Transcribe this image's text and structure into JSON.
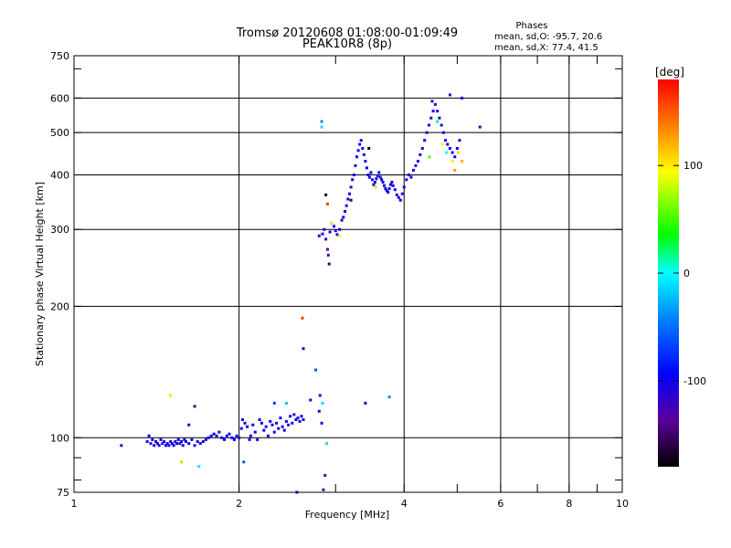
{
  "chart_data": {
    "type": "scatter",
    "title": "Tromsø 20120608 01:08:00-01:09:49",
    "subtitle": "PEAK10R8 (8p)",
    "xlabel": "Frequency [MHz]",
    "ylabel": "Stationary phase Virtual Height [km]",
    "x_scale": "log",
    "y_scale": "log",
    "xlim": [
      1,
      10
    ],
    "ylim": [
      75,
      750
    ],
    "x_ticks": [
      {
        "value": 1,
        "label": "1"
      },
      {
        "value": 2,
        "label": "2"
      },
      {
        "value": 4,
        "label": "4"
      },
      {
        "value": 6,
        "label": "6"
      },
      {
        "value": 8,
        "label": "8"
      },
      {
        "value": 10,
        "label": "10"
      }
    ],
    "y_ticks": [
      {
        "value": 75,
        "label": "75"
      },
      {
        "value": 100,
        "label": "100"
      },
      {
        "value": 200,
        "label": "200"
      },
      {
        "value": 300,
        "label": "300"
      },
      {
        "value": 400,
        "label": "400"
      },
      {
        "value": 500,
        "label": "500"
      },
      {
        "value": 600,
        "label": "600"
      },
      {
        "value": 750,
        "label": "750"
      }
    ],
    "grid": true,
    "stats": {
      "heading": "Phases",
      "line_o": "mean, sd,O:  -95.7, 20.6",
      "line_x": "mean, sd,X:  77.4, 41.5"
    },
    "colorbar": {
      "label": "[deg]",
      "range": [
        -180,
        180
      ],
      "ticks": [
        {
          "value": 100,
          "label": "100"
        },
        {
          "value": 0,
          "label": "0"
        },
        {
          "value": -100,
          "label": "-100"
        }
      ]
    },
    "points": [
      [
        1.22,
        96,
        -100
      ],
      [
        1.36,
        98,
        -105
      ],
      [
        1.37,
        101,
        -100
      ],
      [
        1.38,
        97,
        -110
      ],
      [
        1.39,
        99,
        -100
      ],
      [
        1.4,
        96,
        -105
      ],
      [
        1.41,
        98,
        -100
      ],
      [
        1.42,
        97,
        -100
      ],
      [
        1.43,
        96,
        -110
      ],
      [
        1.44,
        99,
        -100
      ],
      [
        1.45,
        97,
        -100
      ],
      [
        1.46,
        98,
        -105
      ],
      [
        1.47,
        96,
        -100
      ],
      [
        1.48,
        97,
        -100
      ],
      [
        1.49,
        96,
        -110
      ],
      [
        1.5,
        98,
        -100
      ],
      [
        1.51,
        97,
        -100
      ],
      [
        1.52,
        96,
        -100
      ],
      [
        1.53,
        98,
        -105
      ],
      [
        1.54,
        97,
        -100
      ],
      [
        1.55,
        99,
        -100
      ],
      [
        1.56,
        97,
        -110
      ],
      [
        1.57,
        98,
        -100
      ],
      [
        1.58,
        96,
        -100
      ],
      [
        1.59,
        99,
        -105
      ],
      [
        1.6,
        98,
        -100
      ],
      [
        1.62,
        97,
        -100
      ],
      [
        1.64,
        99,
        -110
      ],
      [
        1.66,
        96,
        -100
      ],
      [
        1.68,
        98,
        -100
      ],
      [
        1.7,
        97,
        -105
      ],
      [
        1.72,
        98,
        -100
      ],
      [
        1.74,
        99,
        -100
      ],
      [
        1.76,
        100,
        -100
      ],
      [
        1.78,
        101,
        -105
      ],
      [
        1.8,
        102,
        -100
      ],
      [
        1.82,
        101,
        -100
      ],
      [
        1.84,
        103,
        -110
      ],
      [
        1.86,
        100,
        -100
      ],
      [
        1.88,
        99,
        -100
      ],
      [
        1.9,
        101,
        -105
      ],
      [
        1.92,
        102,
        -100
      ],
      [
        1.94,
        100,
        -100
      ],
      [
        1.96,
        99,
        -100
      ],
      [
        1.98,
        101,
        -110
      ],
      [
        2.0,
        100,
        -100
      ],
      [
        2.02,
        105,
        -100
      ],
      [
        2.03,
        110,
        -105
      ],
      [
        2.05,
        108,
        -100
      ],
      [
        2.07,
        106,
        -100
      ],
      [
        2.09,
        99,
        -110
      ],
      [
        2.1,
        101,
        -100
      ],
      [
        2.12,
        107,
        -100
      ],
      [
        2.14,
        103,
        -105
      ],
      [
        2.16,
        99,
        -100
      ],
      [
        2.18,
        110,
        -100
      ],
      [
        2.2,
        108,
        -105
      ],
      [
        2.22,
        104,
        -100
      ],
      [
        2.24,
        106,
        -100
      ],
      [
        2.26,
        101,
        -110
      ],
      [
        2.28,
        109,
        -100
      ],
      [
        2.3,
        107,
        -100
      ],
      [
        2.32,
        103,
        -105
      ],
      [
        2.34,
        108,
        -100
      ],
      [
        2.36,
        105,
        -100
      ],
      [
        2.38,
        111,
        -100
      ],
      [
        2.4,
        106,
        -110
      ],
      [
        2.42,
        104,
        -100
      ],
      [
        2.44,
        109,
        -100
      ],
      [
        2.46,
        107,
        -105
      ],
      [
        2.48,
        112,
        -100
      ],
      [
        2.5,
        108,
        -100
      ],
      [
        2.52,
        113,
        -105
      ],
      [
        2.54,
        110,
        -100
      ],
      [
        2.56,
        111,
        -100
      ],
      [
        2.58,
        109,
        -110
      ],
      [
        2.6,
        112,
        -100
      ],
      [
        2.62,
        110,
        -100
      ],
      [
        1.5,
        125,
        80
      ],
      [
        1.57,
        88,
        70
      ],
      [
        1.62,
        107,
        -110
      ],
      [
        1.66,
        118,
        -150
      ],
      [
        1.69,
        86,
        -10
      ],
      [
        2.04,
        88,
        -60
      ],
      [
        2.32,
        120,
        -70
      ],
      [
        2.44,
        120,
        -20
      ],
      [
        2.55,
        75,
        -100
      ],
      [
        2.61,
        188,
        160
      ],
      [
        2.62,
        160,
        -100
      ],
      [
        2.7,
        122,
        -90
      ],
      [
        2.76,
        143,
        -60
      ],
      [
        2.8,
        115,
        -120
      ],
      [
        2.81,
        125,
        -100
      ],
      [
        2.84,
        120,
        -10
      ],
      [
        2.83,
        108,
        -100
      ],
      [
        2.87,
        82,
        -130
      ],
      [
        2.89,
        97,
        20
      ],
      [
        2.85,
        76,
        -140
      ],
      [
        3.4,
        120,
        -100
      ],
      [
        3.76,
        124,
        -40
      ],
      [
        2.8,
        290,
        -100
      ],
      [
        2.84,
        293,
        -100
      ],
      [
        2.86,
        300,
        -110
      ],
      [
        2.88,
        285,
        -120
      ],
      [
        2.9,
        270,
        -130
      ],
      [
        2.91,
        262,
        -140
      ],
      [
        2.92,
        250,
        -150
      ],
      [
        2.93,
        296,
        -100
      ],
      [
        2.95,
        310,
        -100
      ],
      [
        2.98,
        305,
        -100
      ],
      [
        3.0,
        298,
        -110
      ],
      [
        3.02,
        292,
        -100
      ],
      [
        3.05,
        300,
        -100
      ],
      [
        3.08,
        315,
        -105
      ],
      [
        3.1,
        320,
        -100
      ],
      [
        3.12,
        330,
        -100
      ],
      [
        3.14,
        340,
        -110
      ],
      [
        3.16,
        352,
        -100
      ],
      [
        3.18,
        362,
        -100
      ],
      [
        3.2,
        375,
        -105
      ],
      [
        3.22,
        390,
        -100
      ],
      [
        3.24,
        400,
        -100
      ],
      [
        3.26,
        420,
        -110
      ],
      [
        3.28,
        440,
        -100
      ],
      [
        3.3,
        455,
        -100
      ],
      [
        3.32,
        470,
        -105
      ],
      [
        3.34,
        480,
        -100
      ],
      [
        3.36,
        460,
        -100
      ],
      [
        3.38,
        445,
        -110
      ],
      [
        3.4,
        430,
        -100
      ],
      [
        3.42,
        415,
        -100
      ],
      [
        3.44,
        400,
        -105
      ],
      [
        3.46,
        395,
        -100
      ],
      [
        3.48,
        405,
        -100
      ],
      [
        3.5,
        390,
        -110
      ],
      [
        3.52,
        380,
        -100
      ],
      [
        3.54,
        385,
        -100
      ],
      [
        3.56,
        392,
        -105
      ],
      [
        3.58,
        398,
        -100
      ],
      [
        3.6,
        405,
        -100
      ],
      [
        3.62,
        395,
        -110
      ],
      [
        3.64,
        390,
        -100
      ],
      [
        3.66,
        385,
        -100
      ],
      [
        3.68,
        378,
        -105
      ],
      [
        3.7,
        372,
        -100
      ],
      [
        3.72,
        368,
        -100
      ],
      [
        3.74,
        365,
        -110
      ],
      [
        3.76,
        372,
        -100
      ],
      [
        3.78,
        380,
        -100
      ],
      [
        3.8,
        385,
        -105
      ],
      [
        3.82,
        378,
        -100
      ],
      [
        3.85,
        370,
        -100
      ],
      [
        3.88,
        360,
        -110
      ],
      [
        3.91,
        355,
        -100
      ],
      [
        3.94,
        350,
        -100
      ],
      [
        3.97,
        362,
        -105
      ],
      [
        4.0,
        375,
        -100
      ],
      [
        4.04,
        390,
        -100
      ],
      [
        4.08,
        400,
        -110
      ],
      [
        4.12,
        395,
        -100
      ],
      [
        4.16,
        410,
        -100
      ],
      [
        4.2,
        420,
        -105
      ],
      [
        4.24,
        430,
        -100
      ],
      [
        4.28,
        445,
        -100
      ],
      [
        4.32,
        460,
        -110
      ],
      [
        4.36,
        480,
        -100
      ],
      [
        4.4,
        500,
        -100
      ],
      [
        4.44,
        520,
        -105
      ],
      [
        4.48,
        540,
        -100
      ],
      [
        4.52,
        560,
        -100
      ],
      [
        4.56,
        580,
        -110
      ],
      [
        4.6,
        560,
        -100
      ],
      [
        4.64,
        540,
        -100
      ],
      [
        4.68,
        520,
        -105
      ],
      [
        4.72,
        500,
        -100
      ],
      [
        4.76,
        480,
        -100
      ],
      [
        4.8,
        470,
        -110
      ],
      [
        4.85,
        460,
        -100
      ],
      [
        4.9,
        450,
        -100
      ],
      [
        4.95,
        440,
        -105
      ],
      [
        5.0,
        460,
        -100
      ],
      [
        5.05,
        480,
        -100
      ],
      [
        5.1,
        600,
        -100
      ],
      [
        5.5,
        515,
        -120
      ],
      [
        4.85,
        610,
        -120
      ],
      [
        4.5,
        590,
        -110
      ],
      [
        2.83,
        530,
        -40
      ],
      [
        2.83,
        515,
        -10
      ],
      [
        2.88,
        360,
        -170
      ],
      [
        2.9,
        343,
        160
      ],
      [
        2.95,
        310,
        100
      ],
      [
        3.05,
        290,
        90
      ],
      [
        3.55,
        375,
        80
      ],
      [
        4.45,
        440,
        60
      ],
      [
        4.6,
        530,
        20
      ],
      [
        4.78,
        450,
        0
      ],
      [
        4.9,
        430,
        100
      ],
      [
        5.02,
        450,
        110
      ],
      [
        5.1,
        430,
        120
      ],
      [
        4.95,
        410,
        130
      ],
      [
        4.7,
        470,
        90
      ],
      [
        3.45,
        460,
        -170
      ],
      [
        3.2,
        350,
        -160
      ]
    ]
  }
}
